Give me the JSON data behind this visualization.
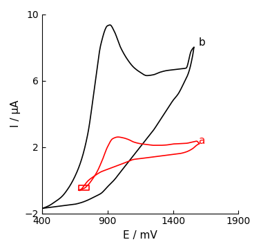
{
  "title": "",
  "xlabel": "E / mV",
  "ylabel": "I / μA",
  "xlim": [
    400,
    1900
  ],
  "ylim": [
    -2,
    10
  ],
  "xticks": [
    400,
    900,
    1400,
    1900
  ],
  "yticks": [
    -2,
    2,
    6,
    10
  ],
  "label_a": "a",
  "label_b": "b",
  "color_a": "#ff0000",
  "color_b": "#000000",
  "figsize": [
    3.78,
    3.63
  ],
  "dpi": 100
}
